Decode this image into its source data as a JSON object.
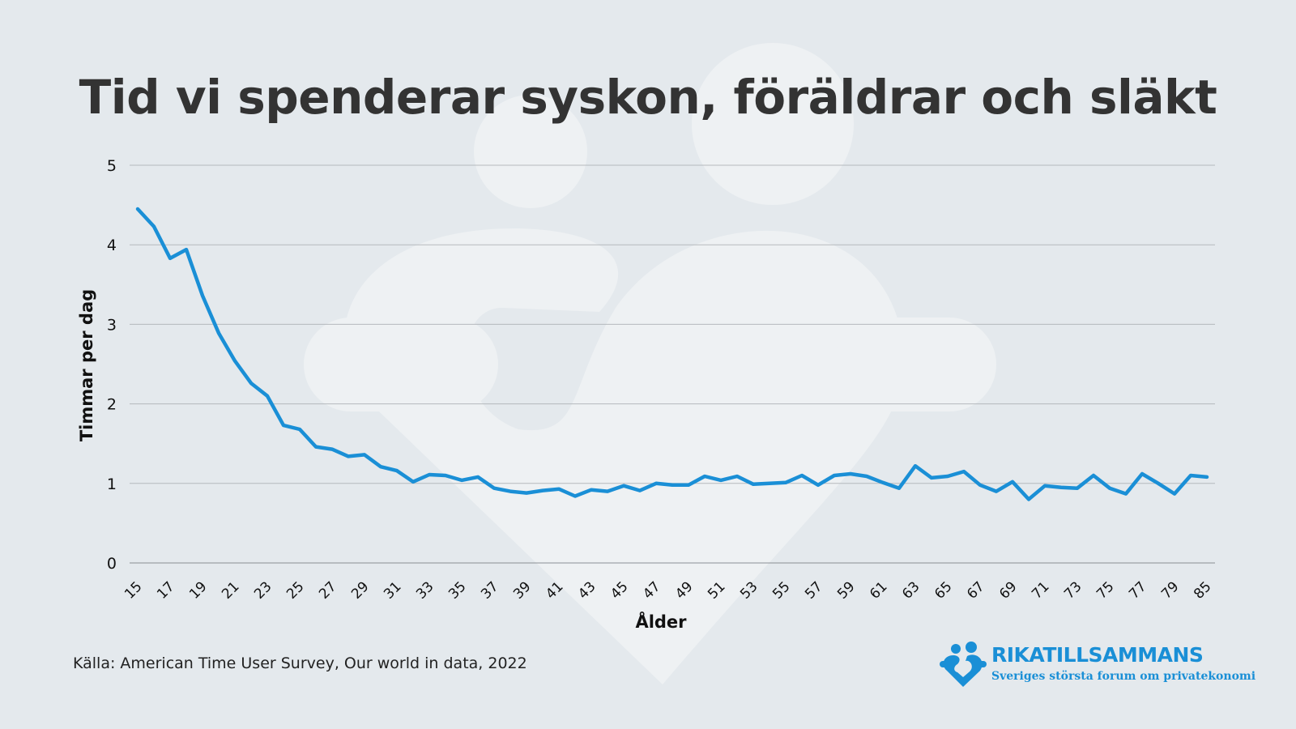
{
  "title": "Tid vi spenderar syskon, föräldrar och släkt",
  "source": "Källa: American Time User Survey, Our world in data, 2022",
  "logo": {
    "name": "RIKATILLSAMMANS",
    "tagline": "Sveriges största forum om privatekonomi",
    "icon": "people-heart-icon"
  },
  "colors": {
    "background": "#e4e9ed",
    "line": "#1a8fd6",
    "title": "#333333",
    "grid": "#b5b9bd",
    "watermark": "#eef1f3"
  },
  "chart_data": {
    "type": "line",
    "xlabel": "Ålder",
    "ylabel": "Timmar per dag",
    "ylim": [
      0,
      5
    ],
    "yticks": [
      0,
      1,
      2,
      3,
      4,
      5
    ],
    "xticks": [
      15,
      17,
      19,
      21,
      23,
      25,
      27,
      29,
      31,
      33,
      35,
      37,
      39,
      41,
      43,
      45,
      47,
      49,
      51,
      53,
      55,
      57,
      59,
      61,
      63,
      65,
      67,
      69,
      71,
      73,
      75,
      77,
      79,
      85
    ],
    "grid": true,
    "x": [
      15,
      16,
      17,
      18,
      19,
      20,
      21,
      22,
      23,
      24,
      25,
      26,
      27,
      28,
      29,
      30,
      31,
      32,
      33,
      34,
      35,
      36,
      37,
      38,
      39,
      40,
      41,
      42,
      43,
      44,
      45,
      46,
      47,
      48,
      49,
      50,
      51,
      52,
      53,
      54,
      55,
      56,
      57,
      58,
      59,
      60,
      61,
      62,
      63,
      64,
      65,
      66,
      67,
      68,
      69,
      70,
      71,
      72,
      73,
      74,
      75,
      76,
      77,
      78,
      79,
      80,
      85
    ],
    "values": [
      4.45,
      4.23,
      3.83,
      3.94,
      3.36,
      2.89,
      2.54,
      2.26,
      2.1,
      1.73,
      1.68,
      1.46,
      1.43,
      1.34,
      1.36,
      1.21,
      1.16,
      1.02,
      1.11,
      1.1,
      1.04,
      1.08,
      0.94,
      0.9,
      0.88,
      0.91,
      0.93,
      0.84,
      0.92,
      0.9,
      0.97,
      0.91,
      1.0,
      0.98,
      0.98,
      1.09,
      1.04,
      1.09,
      0.99,
      1.0,
      1.01,
      1.1,
      0.98,
      1.1,
      1.12,
      1.09,
      1.01,
      0.94,
      1.22,
      1.07,
      1.09,
      1.15,
      0.98,
      0.9,
      1.02,
      0.8,
      0.97,
      0.95,
      0.94,
      1.1,
      0.94,
      0.87,
      1.12,
      1.0,
      0.87,
      1.1,
      1.08
    ]
  }
}
